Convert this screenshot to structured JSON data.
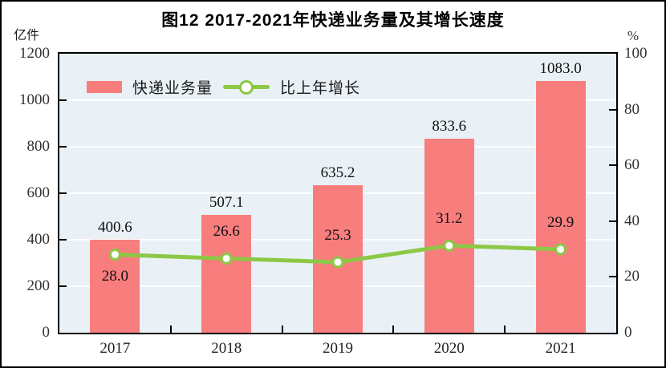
{
  "title": "图12  2017-2021年快递业务量及其增长速度",
  "left_axis_unit": "亿件",
  "right_axis_unit": "%",
  "legend": {
    "bar_label": "快递业务量",
    "line_label": "比上年增长"
  },
  "colors": {
    "bar": "#F87D7D",
    "line": "#8CC846",
    "marker_fill": "#FFFFFF",
    "plot_bg": "#E9F1F6",
    "grid": "#FFFFFF",
    "axis": "#000000",
    "tick_text": "#333333",
    "label_text": "#111111"
  },
  "chart_data": {
    "type": "combo-bar-line",
    "title": "图12  2017-2021年快递业务量及其增长速度",
    "categories": [
      "2017",
      "2018",
      "2019",
      "2020",
      "2021"
    ],
    "series": [
      {
        "name": "快递业务量",
        "type": "bar",
        "axis": "left",
        "unit": "亿件",
        "values": [
          400.6,
          507.1,
          635.2,
          833.6,
          1083.0
        ]
      },
      {
        "name": "比上年增长",
        "type": "line",
        "axis": "right",
        "unit": "%",
        "values": [
          28.0,
          26.6,
          25.3,
          31.2,
          29.9
        ]
      }
    ],
    "left_axis": {
      "label": "亿件",
      "ticks": [
        0,
        200,
        400,
        600,
        800,
        1000,
        1200
      ],
      "range": [
        0,
        1200
      ]
    },
    "right_axis": {
      "label": "%",
      "ticks": [
        0,
        20,
        40,
        60,
        80,
        100
      ],
      "range": [
        0,
        100
      ]
    },
    "grid": true,
    "gridline_interval_left": 200,
    "legend_position": "top-left",
    "value_labels_decimals": 1
  }
}
